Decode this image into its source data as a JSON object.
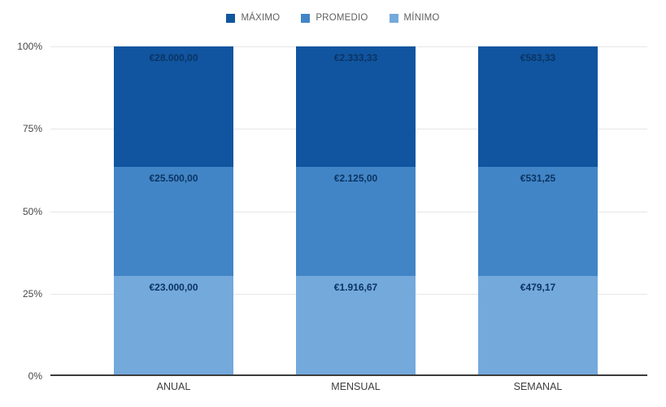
{
  "chart_data": {
    "type": "bar",
    "variant": "stacked-100-percent",
    "title": "",
    "xlabel": "",
    "ylabel": "",
    "categories": [
      "ANUAL",
      "MENSUAL",
      "SEMANAL"
    ],
    "series": [
      {
        "name": "MÁXIMO",
        "color": "#1155a0",
        "values": [
          28000.0,
          2333.33,
          583.33
        ],
        "labels": [
          "€28.000,00",
          "€2.333,33",
          "€583,33"
        ]
      },
      {
        "name": "PROMEDIO",
        "color": "#4285c6",
        "values": [
          25500.0,
          2125.0,
          531.25
        ],
        "labels": [
          "€25.500,00",
          "€2.125,00",
          "€531,25"
        ]
      },
      {
        "name": "MÍNIMO",
        "color": "#74a9dc",
        "values": [
          23000.0,
          1916.67,
          479.17
        ],
        "labels": [
          "€23.000,00",
          "€1.916,67",
          "€479,17"
        ]
      }
    ],
    "stack_order_top_to_bottom": [
      "MÁXIMO",
      "PROMEDIO",
      "MÍNIMO"
    ],
    "y_ticks": [
      "0%",
      "25%",
      "50%",
      "75%",
      "100%"
    ],
    "ylim": [
      0,
      100
    ],
    "grid": true,
    "legend_position": "top",
    "colors": {
      "grid": "#e6e6e6",
      "axis": "#3c3c3c",
      "bar_label_text": "#0a3463",
      "tick_text": "#464646",
      "legend_text": "#5f5f5f",
      "background": "#ffffff"
    }
  }
}
